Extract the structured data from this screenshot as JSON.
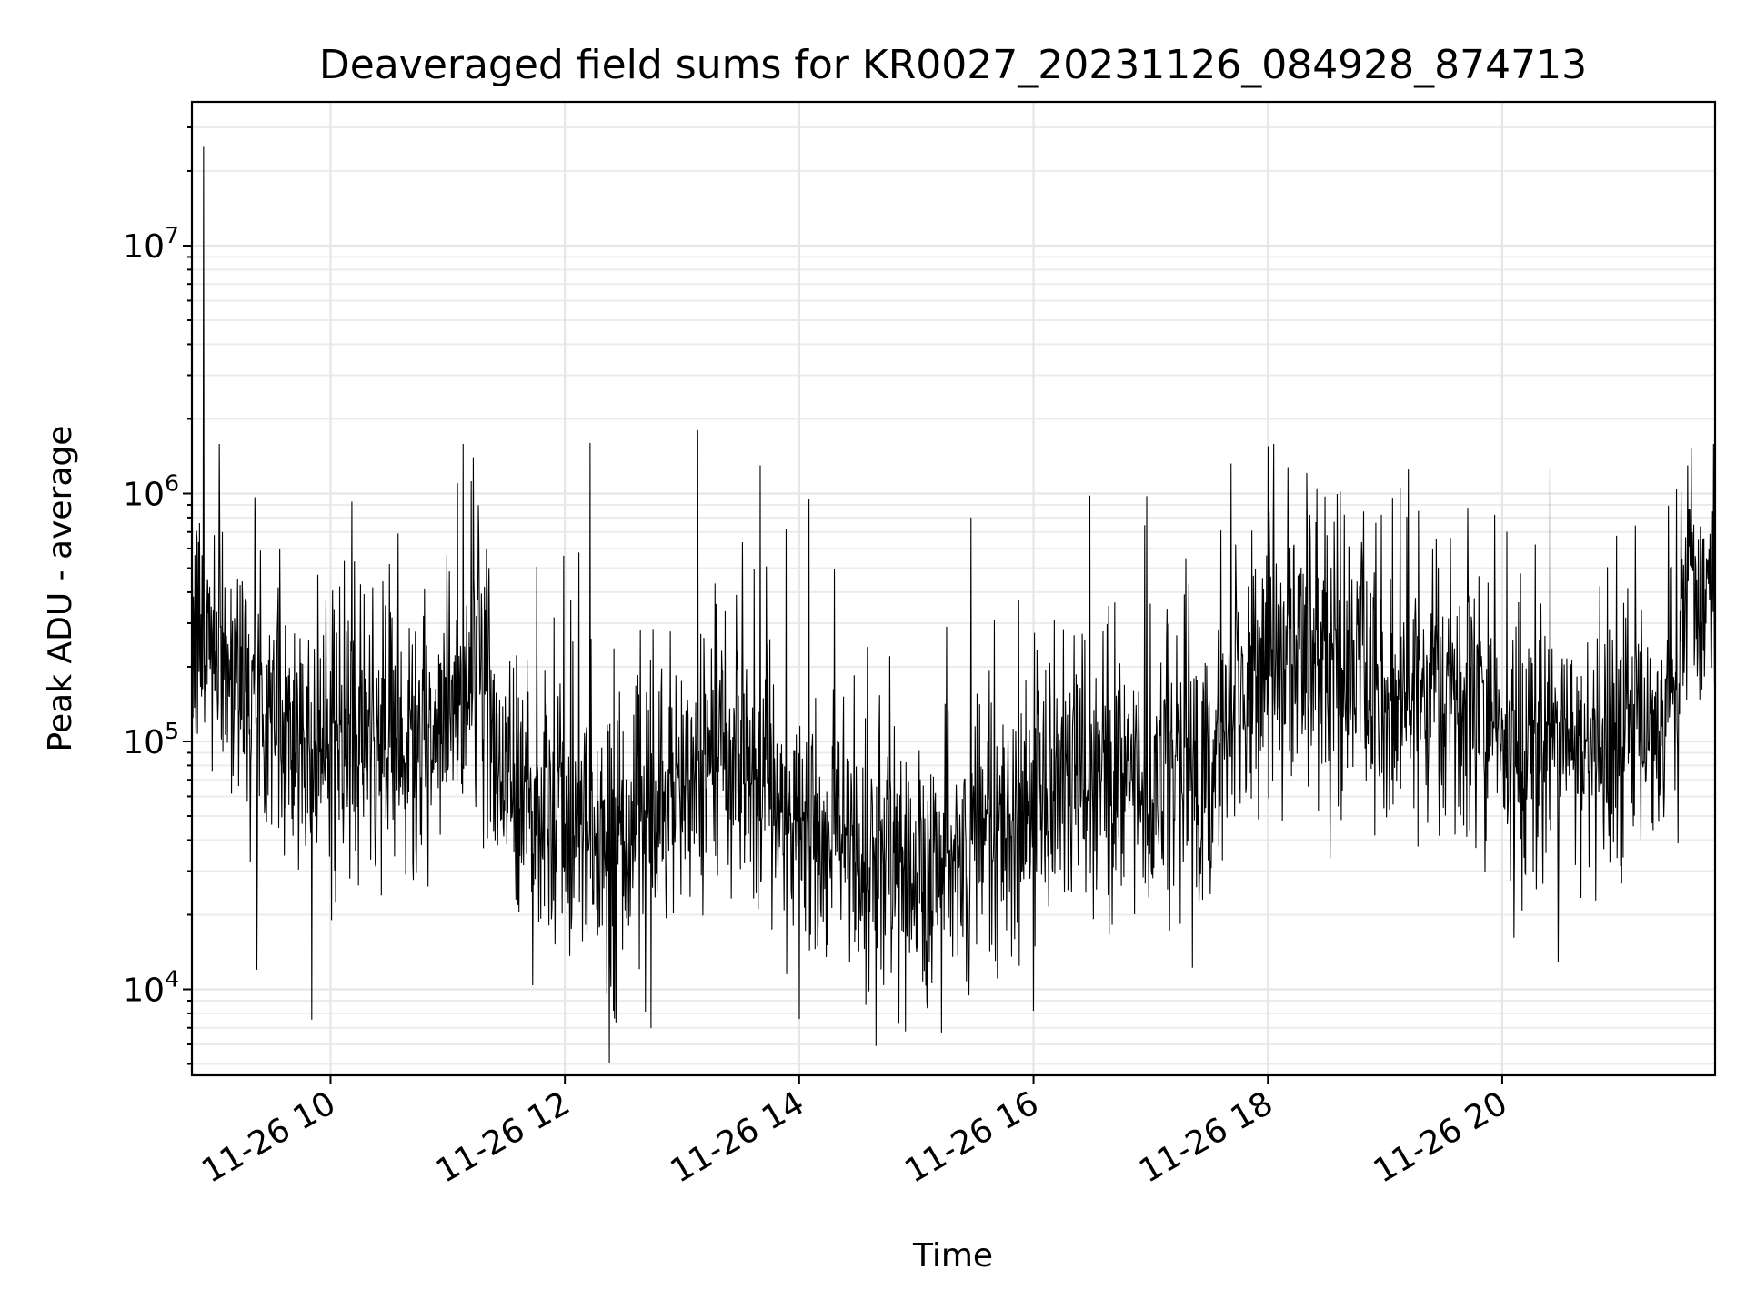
{
  "chart_data": {
    "type": "line",
    "title": "Deaveraged field sums for KR0027_20231126_084928_874713",
    "xlabel": "Time",
    "ylabel": "Peak ADU - average",
    "yscale": "log",
    "grid": true,
    "x_axis": {
      "kind": "datetime",
      "range": [
        "2023-11-26T08:49",
        "2023-11-26T21:49"
      ],
      "ticks": [
        "2023-11-26T10:00",
        "2023-11-26T12:00",
        "2023-11-26T14:00",
        "2023-11-26T16:00",
        "2023-11-26T18:00",
        "2023-11-26T20:00"
      ],
      "tick_labels": [
        "11-26 10",
        "11-26 12",
        "11-26 14",
        "11-26 16",
        "11-26 18",
        "11-26 20"
      ]
    },
    "y_axis": {
      "range": [
        4500,
        38000000
      ],
      "ticks": [
        10000,
        100000,
        1000000,
        10000000
      ],
      "tick_labels": [
        {
          "base": "10",
          "exp": "4"
        },
        {
          "base": "10",
          "exp": "5"
        },
        {
          "base": "10",
          "exp": "6"
        },
        {
          "base": "10",
          "exp": "7"
        }
      ]
    },
    "series": [
      {
        "color": "#000000",
        "trend": {
          "x": [
            "2023-11-26T08:49",
            "2023-11-26T09:00",
            "2023-11-26T09:15",
            "2023-11-26T09:30",
            "2023-11-26T10:00",
            "2023-11-26T10:30",
            "2023-11-26T11:00",
            "2023-11-26T11:15",
            "2023-11-26T11:30",
            "2023-11-26T12:00",
            "2023-11-26T12:30",
            "2023-11-26T13:00",
            "2023-11-26T13:30",
            "2023-11-26T14:00",
            "2023-11-26T14:30",
            "2023-11-26T15:00",
            "2023-11-26T15:30",
            "2023-11-26T16:00",
            "2023-11-26T16:30",
            "2023-11-26T17:00",
            "2023-11-26T17:30",
            "2023-11-26T17:45",
            "2023-11-26T18:00",
            "2023-11-26T18:30",
            "2023-11-26T18:45",
            "2023-11-26T19:00",
            "2023-11-26T19:30",
            "2023-11-26T20:00",
            "2023-11-26T20:30",
            "2023-11-26T21:00",
            "2023-11-26T21:30",
            "2023-11-26T21:35",
            "2023-11-26T21:49"
          ],
          "y": [
            250000,
            280000,
            180000,
            120000,
            95000,
            90000,
            100000,
            230000,
            70000,
            45000,
            35000,
            60000,
            95000,
            45000,
            35000,
            30000,
            40000,
            55000,
            65000,
            70000,
            80000,
            140000,
            220000,
            220000,
            200000,
            130000,
            150000,
            100000,
            90000,
            100000,
            140000,
            450000,
            400000
          ]
        },
        "peaks": [
          {
            "x": "2023-11-26T08:55",
            "y": 25000000
          },
          {
            "x": "2023-11-26T09:34",
            "y": 600000
          },
          {
            "x": "2023-11-26T11:05",
            "y": 1100000
          },
          {
            "x": "2023-11-26T11:13",
            "y": 1400000
          },
          {
            "x": "2023-11-26T12:13",
            "y": 1600000
          },
          {
            "x": "2023-11-26T13:08",
            "y": 1800000
          },
          {
            "x": "2023-11-26T13:40",
            "y": 1300000
          },
          {
            "x": "2023-11-26T14:05",
            "y": 950000
          },
          {
            "x": "2023-11-26T15:28",
            "y": 800000
          },
          {
            "x": "2023-11-26T18:00",
            "y": 1550000
          },
          {
            "x": "2023-11-26T18:25",
            "y": 1050000
          },
          {
            "x": "2023-11-26T19:12",
            "y": 1250000
          },
          {
            "x": "2023-11-26T21:35",
            "y": 1300000
          }
        ],
        "troughs": [
          {
            "x": "2023-11-26T12:25",
            "y": 8200
          },
          {
            "x": "2023-11-26T14:00",
            "y": 7600
          },
          {
            "x": "2023-11-26T15:13",
            "y": 6700
          },
          {
            "x": "2023-11-26T15:27",
            "y": 9500
          },
          {
            "x": "2023-11-26T16:00",
            "y": 8200
          }
        ]
      }
    ]
  }
}
